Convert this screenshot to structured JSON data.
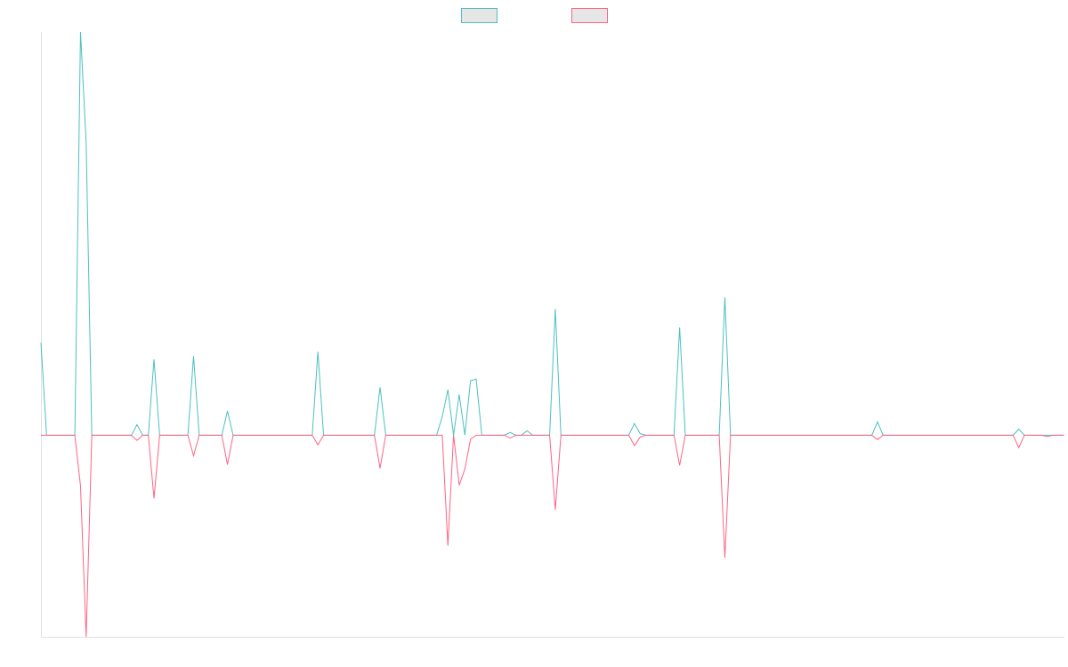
{
  "chart_data": {
    "type": "line",
    "ylim": [
      -50,
      100
    ],
    "series": [
      {
        "color": "#4bc0c0",
        "values": [
          22.9,
          0,
          0,
          0,
          0,
          0,
          0,
          100,
          72.6,
          0,
          0,
          0,
          0,
          0,
          0,
          0,
          0,
          2.6,
          0,
          0,
          18.8,
          0,
          0,
          0,
          0,
          0,
          0,
          19.6,
          0,
          0,
          0,
          0,
          0,
          6,
          0,
          0,
          0,
          0,
          0,
          0,
          0,
          0,
          0,
          0,
          0,
          0,
          0,
          0,
          0,
          20.7,
          0,
          0,
          0,
          0,
          0,
          0,
          0,
          0,
          0,
          0,
          11.9,
          0,
          0,
          0,
          0,
          0,
          0,
          0,
          0,
          0,
          0,
          4.6,
          11.3,
          0,
          10.1,
          0,
          13.5,
          13.9,
          0,
          0,
          0,
          0,
          0,
          0.7,
          0,
          0,
          1.1,
          0,
          0,
          0,
          0,
          31.3,
          0,
          0,
          0,
          0,
          0,
          0,
          0,
          0,
          0,
          0,
          0,
          0,
          0,
          2.9,
          0.4,
          0,
          0,
          0,
          0,
          0,
          0,
          26.7,
          0,
          0,
          0,
          0,
          0,
          0,
          0,
          34.2,
          0,
          0,
          0,
          0,
          0,
          0,
          0,
          0,
          0,
          0,
          0,
          0,
          0,
          0,
          0,
          0,
          0,
          0,
          0,
          0,
          0,
          0,
          0,
          0,
          0,
          0,
          3.3,
          0,
          0,
          0,
          0,
          0,
          0,
          0,
          0,
          0,
          0,
          0,
          0,
          0,
          0,
          0,
          0,
          0,
          0,
          0,
          0,
          0,
          0,
          0,
          0,
          1.5,
          0,
          0,
          0,
          0,
          0,
          0,
          0,
          0
        ]
      },
      {
        "color": "#ff6384",
        "values": [
          0,
          0,
          0,
          0,
          0,
          0,
          0,
          -12.6,
          -50,
          0,
          0,
          0,
          0,
          0,
          0,
          0,
          0,
          -1.3,
          0,
          0,
          -15.7,
          0,
          0,
          0,
          0,
          0,
          0,
          -5.1,
          0,
          0,
          0,
          0,
          0,
          -7.3,
          0,
          0,
          0,
          0,
          0,
          0,
          0,
          0,
          0,
          0,
          0,
          0,
          0,
          0,
          0,
          -2.4,
          0,
          0,
          0,
          0,
          0,
          0,
          0,
          0,
          0,
          0,
          -8.2,
          0,
          0,
          0,
          0,
          0,
          0,
          0,
          0,
          0,
          0,
          0,
          -27.4,
          0,
          -12.4,
          -8.4,
          -1,
          0,
          0,
          0,
          0,
          0,
          0,
          -0.7,
          0,
          0,
          0,
          0,
          0,
          0,
          0,
          -18.5,
          0,
          0,
          0,
          0,
          0,
          0,
          0,
          0,
          0,
          0,
          0,
          0,
          0,
          -2.6,
          -0.5,
          0,
          0,
          0,
          0,
          0,
          0,
          -7.5,
          0,
          0,
          0,
          0,
          0,
          0,
          0,
          -30.4,
          0,
          0,
          0,
          0,
          0,
          0,
          0,
          0,
          0,
          0,
          0,
          0,
          0,
          0,
          0,
          0,
          0,
          0,
          0,
          0,
          0,
          0,
          0,
          0,
          0,
          0,
          -1.1,
          0,
          0,
          0,
          0,
          0,
          0,
          0,
          0,
          0,
          0,
          0,
          0,
          0,
          0,
          0,
          0,
          0,
          0,
          0,
          0,
          0,
          0,
          0,
          0,
          -3.1,
          0,
          0,
          0,
          0,
          -0.3,
          0,
          0,
          0
        ]
      }
    ]
  }
}
